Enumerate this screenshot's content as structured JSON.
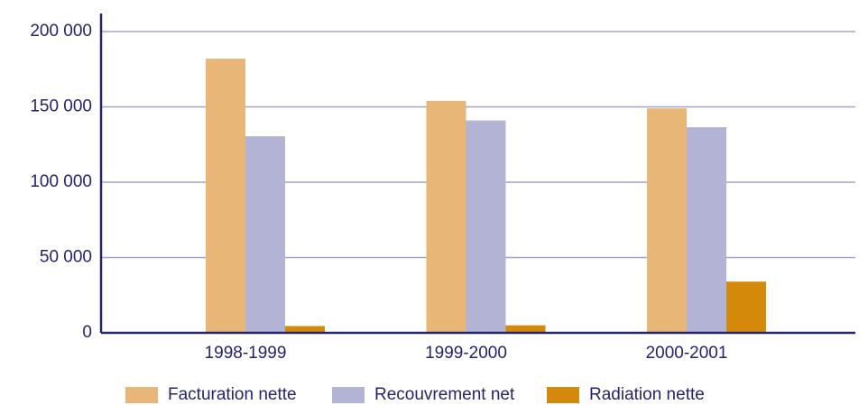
{
  "chart_data": {
    "type": "bar",
    "categories": [
      "1998-1999",
      "1999-2000",
      "2000-2001"
    ],
    "series": [
      {
        "name": "Facturation nette",
        "color": "#e8b677",
        "values": [
          182000,
          154000,
          149000
        ]
      },
      {
        "name": "Recouvrement net",
        "color": "#b3b3d6",
        "values": [
          130500,
          141000,
          136500
        ]
      },
      {
        "name": "Radiation nette",
        "color": "#d4890a",
        "values": [
          4500,
          5000,
          34000
        ]
      }
    ],
    "ylim": [
      0,
      200000
    ],
    "yticks": [
      0,
      {
        "value": 50000,
        "label": "50 000"
      },
      {
        "value": 100000,
        "label": "100 000"
      },
      {
        "value": 150000,
        "label": "150 000"
      },
      {
        "value": 200000,
        "label": "200 000"
      }
    ],
    "grid": true,
    "legend": "bottom"
  }
}
